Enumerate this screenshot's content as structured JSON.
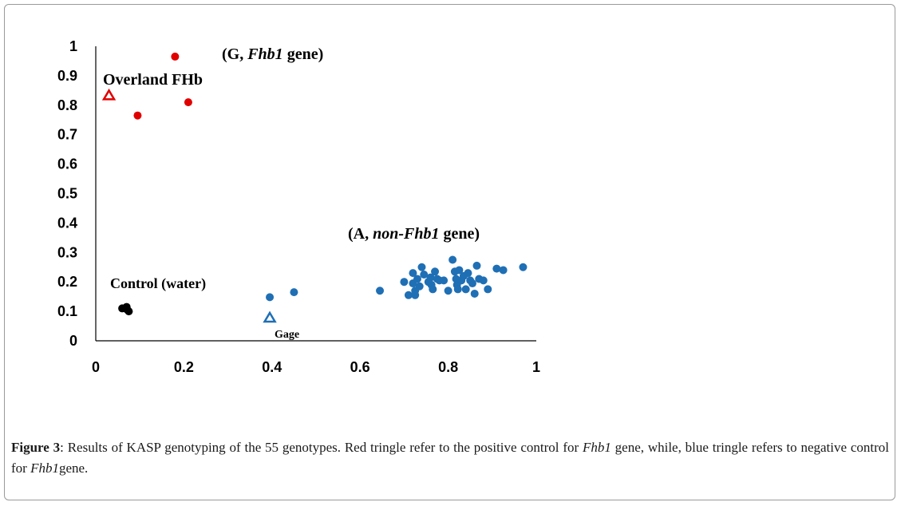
{
  "chart_data": {
    "type": "scatter",
    "title": "",
    "xlabel": "",
    "ylabel": "",
    "xlim": [
      0,
      1
    ],
    "ylim": [
      0,
      1
    ],
    "xticks": [
      "0",
      "0.2",
      "0.4",
      "0.6",
      "0.8",
      "1"
    ],
    "yticks": [
      "0",
      "0.1",
      "0.2",
      "0.3",
      "0.4",
      "0.5",
      "0.6",
      "0.7",
      "0.8",
      "0.9",
      "1"
    ],
    "grid": false,
    "series": [
      {
        "color": "#e00000",
        "marker": "circle",
        "points": [
          [
            0.18,
            0.965
          ],
          [
            0.21,
            0.81
          ],
          [
            0.095,
            0.765
          ]
        ]
      },
      {
        "color": "#e00000",
        "marker": "open-triangle",
        "points": [
          [
            0.03,
            0.835
          ]
        ]
      },
      {
        "color": "#000000",
        "marker": "circle",
        "points": [
          [
            0.06,
            0.11
          ],
          [
            0.067,
            0.11
          ],
          [
            0.072,
            0.105
          ],
          [
            0.075,
            0.1
          ],
          [
            0.07,
            0.115
          ]
        ]
      },
      {
        "color": "#1f6fb5",
        "marker": "open-triangle",
        "points": [
          [
            0.395,
            0.08
          ]
        ]
      },
      {
        "color": "#1f6fb5",
        "marker": "circle",
        "points": [
          [
            0.395,
            0.148
          ],
          [
            0.45,
            0.165
          ],
          [
            0.645,
            0.17
          ],
          [
            0.7,
            0.2
          ],
          [
            0.71,
            0.155
          ],
          [
            0.72,
            0.23
          ],
          [
            0.72,
            0.195
          ],
          [
            0.725,
            0.17
          ],
          [
            0.725,
            0.155
          ],
          [
            0.73,
            0.21
          ],
          [
            0.735,
            0.185
          ],
          [
            0.74,
            0.25
          ],
          [
            0.745,
            0.225
          ],
          [
            0.755,
            0.2
          ],
          [
            0.76,
            0.215
          ],
          [
            0.762,
            0.19
          ],
          [
            0.765,
            0.175
          ],
          [
            0.77,
            0.235
          ],
          [
            0.775,
            0.21
          ],
          [
            0.78,
            0.205
          ],
          [
            0.79,
            0.205
          ],
          [
            0.8,
            0.17
          ],
          [
            0.81,
            0.275
          ],
          [
            0.815,
            0.235
          ],
          [
            0.818,
            0.21
          ],
          [
            0.82,
            0.19
          ],
          [
            0.822,
            0.175
          ],
          [
            0.825,
            0.24
          ],
          [
            0.83,
            0.205
          ],
          [
            0.835,
            0.22
          ],
          [
            0.84,
            0.175
          ],
          [
            0.845,
            0.23
          ],
          [
            0.85,
            0.205
          ],
          [
            0.855,
            0.195
          ],
          [
            0.86,
            0.16
          ],
          [
            0.865,
            0.255
          ],
          [
            0.87,
            0.21
          ],
          [
            0.88,
            0.205
          ],
          [
            0.89,
            0.175
          ],
          [
            0.91,
            0.245
          ],
          [
            0.925,
            0.24
          ],
          [
            0.97,
            0.25
          ]
        ]
      }
    ],
    "annotations": [
      {
        "id": "g",
        "parts": [
          {
            "t": "(G, ",
            "i": false
          },
          {
            "t": "Fhb1",
            "i": true
          },
          {
            "t": " gene)",
            "i": false
          }
        ]
      },
      {
        "id": "overland",
        "parts": [
          {
            "t": "Overland FHb",
            "i": false
          }
        ]
      },
      {
        "id": "a",
        "parts": [
          {
            "t": "(A, ",
            "i": false
          },
          {
            "t": "non-Fhb1",
            "i": true
          },
          {
            "t": " gene)",
            "i": false
          }
        ]
      },
      {
        "id": "control",
        "parts": [
          {
            "t": "Control (water)",
            "i": false
          }
        ]
      },
      {
        "id": "gage",
        "parts": [
          {
            "t": "Gage",
            "i": false
          }
        ]
      }
    ]
  },
  "caption": {
    "label": "Figure 3",
    "parts": [
      {
        "t": ": Results of KASP genotyping of the 55 genotypes. Red tringle refer to the positive control for ",
        "i": false
      },
      {
        "t": "Fhb1",
        "i": true
      },
      {
        "t": " gene, while, blue tringle refers to negative control for ",
        "i": false
      },
      {
        "t": "Fhb1",
        "i": true
      },
      {
        "t": "gene.",
        "i": false
      }
    ]
  }
}
